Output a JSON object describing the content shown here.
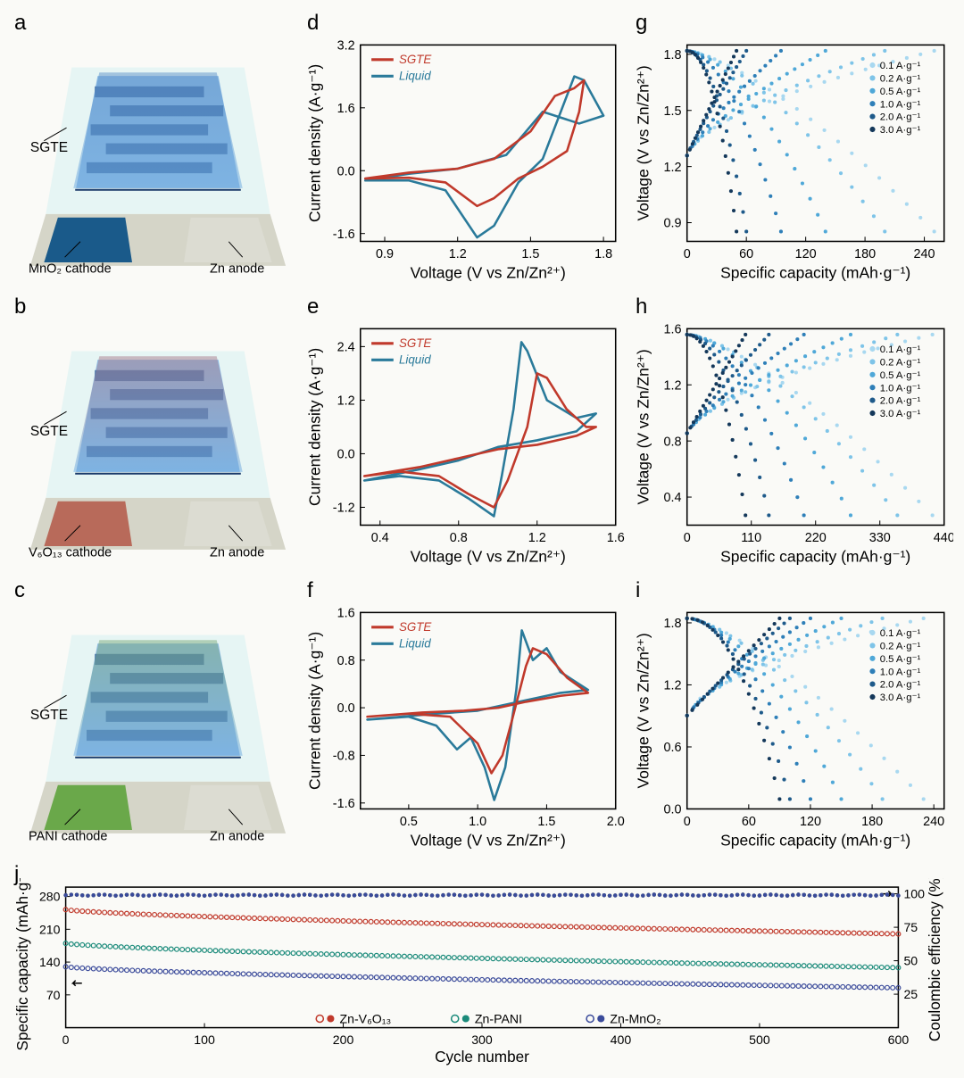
{
  "colors": {
    "sgte": "#c0392b",
    "liquid": "#2a7a9a",
    "bg": "#fafaf7",
    "axis": "#000000",
    "schem_base": "#d5d5c8",
    "schem_substrate": "#d9f2f2",
    "schem_anode": "#dcdcd2",
    "interdig_top": "#4a8fd8",
    "interdig_mid": "#3a6aa5",
    "rate_palette": [
      "#a8d8f0",
      "#7ec4e8",
      "#4fa8d8",
      "#2e7fb8",
      "#1e5a8a",
      "#14385a"
    ],
    "znv": "#c0392b",
    "znpani": "#1a8a7a",
    "znmno2": "#3a4a9a"
  },
  "schematics": [
    {
      "label": "a",
      "sgte": "SGTE",
      "cathode_label": "MnO₂ cathode",
      "anode_label": "Zn anode",
      "cathode_color": "#1a5a8a",
      "tint": "#5a8fc8"
    },
    {
      "label": "b",
      "sgte": "SGTE",
      "cathode_label": "V₆O₁₃ cathode",
      "anode_label": "Zn anode",
      "cathode_color": "#b86a5a",
      "tint": "#a87a8a"
    },
    {
      "label": "c",
      "sgte": "SGTE",
      "cathode_label": "PANI cathode",
      "anode_label": "Zn anode",
      "cathode_color": "#6aa84a",
      "tint": "#7aa878"
    }
  ],
  "cv": [
    {
      "label": "d",
      "xlabel": "Voltage (V vs Zn/Zn²⁺)",
      "ylabel": "Current density (A·g⁻¹)",
      "xlim": [
        0.8,
        1.85
      ],
      "ylim": [
        -1.8,
        3.2
      ],
      "xticks": [
        0.9,
        1.2,
        1.5,
        1.8
      ],
      "yticks": [
        -1.6,
        0.0,
        1.6,
        3.2
      ],
      "legend": [
        "SGTE",
        "Liquid"
      ],
      "sgte_path": [
        [
          0.82,
          -0.2
        ],
        [
          1.0,
          -0.18
        ],
        [
          1.15,
          -0.3
        ],
        [
          1.28,
          -0.9
        ],
        [
          1.35,
          -0.7
        ],
        [
          1.45,
          -0.2
        ],
        [
          1.55,
          0.1
        ],
        [
          1.65,
          0.5
        ],
        [
          1.7,
          1.5
        ],
        [
          1.72,
          2.3
        ],
        [
          1.68,
          2.1
        ],
        [
          1.6,
          1.9
        ],
        [
          1.5,
          1.0
        ],
        [
          1.35,
          0.3
        ],
        [
          1.2,
          0.05
        ],
        [
          1.0,
          -0.05
        ],
        [
          0.82,
          -0.2
        ]
      ],
      "liquid_path": [
        [
          0.82,
          -0.25
        ],
        [
          1.0,
          -0.25
        ],
        [
          1.15,
          -0.5
        ],
        [
          1.28,
          -1.7
        ],
        [
          1.35,
          -1.4
        ],
        [
          1.45,
          -0.3
        ],
        [
          1.55,
          0.3
        ],
        [
          1.68,
          2.4
        ],
        [
          1.72,
          2.3
        ],
        [
          1.8,
          1.4
        ],
        [
          1.7,
          1.2
        ],
        [
          1.55,
          1.5
        ],
        [
          1.4,
          0.4
        ],
        [
          1.2,
          0.05
        ],
        [
          1.0,
          -0.08
        ],
        [
          0.82,
          -0.25
        ]
      ]
    },
    {
      "label": "e",
      "xlabel": "Voltage (V vs Zn/Zn²⁺)",
      "ylabel": "Current density (A·g⁻¹)",
      "xlim": [
        0.3,
        1.6
      ],
      "ylim": [
        -1.6,
        2.8
      ],
      "xticks": [
        0.4,
        0.8,
        1.2,
        1.6
      ],
      "yticks": [
        -1.2,
        0.0,
        1.2,
        2.4
      ],
      "legend": [
        "SGTE",
        "Liquid"
      ],
      "sgte_path": [
        [
          0.32,
          -0.5
        ],
        [
          0.5,
          -0.4
        ],
        [
          0.7,
          -0.5
        ],
        [
          0.85,
          -0.9
        ],
        [
          0.98,
          -1.2
        ],
        [
          1.05,
          -0.6
        ],
        [
          1.15,
          0.6
        ],
        [
          1.2,
          1.8
        ],
        [
          1.25,
          1.7
        ],
        [
          1.35,
          1.0
        ],
        [
          1.45,
          0.6
        ],
        [
          1.5,
          0.6
        ],
        [
          1.4,
          0.4
        ],
        [
          1.2,
          0.2
        ],
        [
          1.0,
          0.1
        ],
        [
          0.8,
          -0.1
        ],
        [
          0.6,
          -0.3
        ],
        [
          0.32,
          -0.5
        ]
      ],
      "liquid_path": [
        [
          0.32,
          -0.6
        ],
        [
          0.5,
          -0.5
        ],
        [
          0.7,
          -0.6
        ],
        [
          0.85,
          -1.0
        ],
        [
          0.98,
          -1.4
        ],
        [
          1.02,
          -0.5
        ],
        [
          1.08,
          1.0
        ],
        [
          1.12,
          2.5
        ],
        [
          1.15,
          2.3
        ],
        [
          1.25,
          1.2
        ],
        [
          1.4,
          0.8
        ],
        [
          1.5,
          0.9
        ],
        [
          1.4,
          0.5
        ],
        [
          1.2,
          0.3
        ],
        [
          1.0,
          0.15
        ],
        [
          0.8,
          -0.15
        ],
        [
          0.6,
          -0.35
        ],
        [
          0.32,
          -0.6
        ]
      ]
    },
    {
      "label": "f",
      "xlabel": "Voltage (V vs Zn/Zn²⁺)",
      "ylabel": "Current density (A·g⁻¹)",
      "xlim": [
        0.15,
        2.0
      ],
      "ylim": [
        -1.7,
        1.6
      ],
      "xticks": [
        0.5,
        1.0,
        1.5,
        2.0
      ],
      "yticks": [
        -1.6,
        -0.8,
        0.0,
        0.8,
        1.6
      ],
      "legend": [
        "SGTE",
        "Liquid"
      ],
      "sgte_path": [
        [
          0.2,
          -0.15
        ],
        [
          0.5,
          -0.1
        ],
        [
          0.8,
          -0.15
        ],
        [
          1.0,
          -0.6
        ],
        [
          1.1,
          -1.1
        ],
        [
          1.18,
          -0.8
        ],
        [
          1.25,
          -0.2
        ],
        [
          1.35,
          0.7
        ],
        [
          1.4,
          1.0
        ],
        [
          1.5,
          0.9
        ],
        [
          1.65,
          0.5
        ],
        [
          1.8,
          0.25
        ],
        [
          1.6,
          0.2
        ],
        [
          1.35,
          0.1
        ],
        [
          1.15,
          0.0
        ],
        [
          0.9,
          -0.05
        ],
        [
          0.6,
          -0.08
        ],
        [
          0.2,
          -0.15
        ]
      ],
      "liquid_path": [
        [
          0.2,
          -0.2
        ],
        [
          0.5,
          -0.15
        ],
        [
          0.7,
          -0.3
        ],
        [
          0.85,
          -0.7
        ],
        [
          0.95,
          -0.5
        ],
        [
          1.05,
          -1.0
        ],
        [
          1.12,
          -1.55
        ],
        [
          1.2,
          -1.0
        ],
        [
          1.28,
          0.3
        ],
        [
          1.32,
          1.3
        ],
        [
          1.4,
          0.8
        ],
        [
          1.5,
          1.0
        ],
        [
          1.6,
          0.6
        ],
        [
          1.8,
          0.3
        ],
        [
          1.6,
          0.25
        ],
        [
          1.3,
          0.1
        ],
        [
          1.0,
          -0.05
        ],
        [
          0.7,
          -0.1
        ],
        [
          0.2,
          -0.2
        ]
      ]
    }
  ],
  "rate": [
    {
      "label": "g",
      "xlabel": "Specific capacity (mAh·g⁻¹)",
      "ylabel": "Voltage (V vs Zn/Zn²⁺)",
      "xlim": [
        0,
        260
      ],
      "ylim": [
        0.8,
        1.85
      ],
      "xticks": [
        0,
        60,
        120,
        180,
        240
      ],
      "yticks": [
        0.9,
        1.2,
        1.5,
        1.8
      ],
      "rates": [
        "0.1 A·g⁻¹",
        "0.2 A·g⁻¹",
        "0.5 A·g⁻¹",
        "1.0 A·g⁻¹",
        "2.0 A·g⁻¹",
        "3.0 A·g⁻¹"
      ],
      "capacities": [
        250,
        200,
        140,
        95,
        60,
        50
      ]
    },
    {
      "label": "h",
      "xlabel": "Specific capacity (mAh·g⁻¹)",
      "ylabel": "Voltage (V vs Zn/Zn²⁺)",
      "xlim": [
        0,
        440
      ],
      "ylim": [
        0.2,
        1.6
      ],
      "xticks": [
        0,
        110,
        220,
        330,
        440
      ],
      "yticks": [
        0.4,
        0.8,
        1.2,
        1.6
      ],
      "rates": [
        "0.1 A·g⁻¹",
        "0.2 A·g⁻¹",
        "0.5 A·g⁻¹",
        "1.0 A·g⁻¹",
        "2.0 A·g⁻¹",
        "3.0 A·g⁻¹"
      ],
      "capacities": [
        420,
        360,
        280,
        200,
        140,
        100
      ]
    },
    {
      "label": "i",
      "xlabel": "Specific capacity (mAh·g⁻¹)",
      "ylabel": "Voltage (V vs Zn/Zn²⁺)",
      "xlim": [
        0,
        250
      ],
      "ylim": [
        0.0,
        1.9
      ],
      "xticks": [
        0,
        60,
        120,
        180,
        240
      ],
      "yticks": [
        0.0,
        0.6,
        1.2,
        1.8
      ],
      "rates": [
        "0.1 A·g⁻¹",
        "0.2 A·g⁻¹",
        "0.5 A·g⁻¹",
        "1.0 A·g⁻¹",
        "2.0 A·g⁻¹",
        "3.0 A·g⁻¹"
      ],
      "capacities": [
        230,
        190,
        150,
        120,
        100,
        90
      ]
    }
  ],
  "cycling": {
    "label": "j",
    "xlabel": "Cycle number",
    "ylabel_left": "Specific capacity (mAh·g⁻¹)",
    "ylabel_right": "Coulombic efficiency (%)",
    "xlim": [
      0,
      600
    ],
    "ylim_left": [
      0,
      300
    ],
    "ylim_right": [
      0,
      105
    ],
    "xticks": [
      0,
      100,
      200,
      300,
      400,
      500,
      600
    ],
    "yticks_left": [
      70,
      140,
      210,
      280
    ],
    "yticks_right": [
      25,
      50,
      75,
      100
    ],
    "series": [
      {
        "name": "Zn-V₆O₁₃",
        "color": "#c0392b",
        "cap_start": 252,
        "cap_end": 200,
        "ce": 99
      },
      {
        "name": "Zn-PANI",
        "color": "#1a8a7a",
        "cap_start": 180,
        "cap_end": 128,
        "ce": 99
      },
      {
        "name": "Zn-MnO₂",
        "color": "#3a4a9a",
        "cap_start": 130,
        "cap_end": 85,
        "ce": 99
      }
    ],
    "legend_labels": [
      "Zn-V₆O₁₃",
      "Zn-PANI",
      "Zn-MnO₂"
    ]
  }
}
